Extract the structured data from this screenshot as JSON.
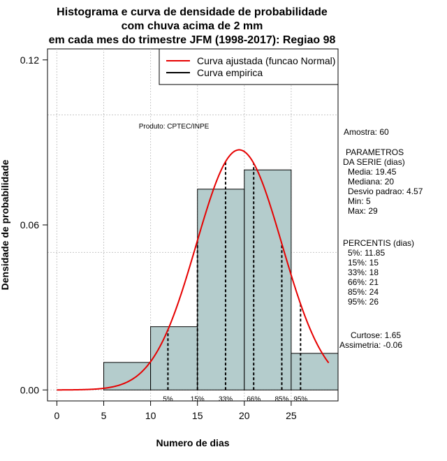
{
  "chart_data": {
    "type": "bar",
    "title_lines": [
      "Histograma e curva de densidade de probabilidade",
      "com chuva acima de 2 mm",
      "em cada mes do trimestre JFM (1998-2017): Regiao 98"
    ],
    "xlabel": "Numero de dias",
    "ylabel": "Densidade de probabilidade",
    "xlim": [
      -1,
      30
    ],
    "ylim": [
      -0.004,
      0.124
    ],
    "x_ticks": [
      0,
      5,
      10,
      15,
      20,
      25
    ],
    "y_ticks": [
      0.0,
      0.06,
      0.12
    ],
    "y_tick_labels": [
      "0.00",
      "0.06",
      "0.12"
    ],
    "bins": [
      {
        "from": 5,
        "to": 10,
        "density": 0.01
      },
      {
        "from": 10,
        "to": 15,
        "density": 0.023
      },
      {
        "from": 15,
        "to": 20,
        "density": 0.073
      },
      {
        "from": 20,
        "to": 25,
        "density": 0.08
      },
      {
        "from": 25,
        "to": 30,
        "density": 0.0133
      }
    ],
    "bar_color": "#b4cccc",
    "normal_fit": {
      "mean": 19.45,
      "sd": 4.57,
      "x_from": 0,
      "x_to": 29,
      "color": "#e60000"
    },
    "percentile_lines": [
      {
        "label": "5%",
        "x": 11.85
      },
      {
        "label": "15%",
        "x": 15
      },
      {
        "label": "33%",
        "x": 18
      },
      {
        "label": "66%",
        "x": 21
      },
      {
        "label": "85%",
        "x": 24
      },
      {
        "label": "95%",
        "x": 26
      }
    ],
    "grid": true,
    "legend": {
      "position": "top-right",
      "entries": [
        {
          "label": "Curva ajustada (funcao Normal)",
          "color": "#e60000"
        },
        {
          "label": "Curva empirica",
          "color": "#000000"
        }
      ]
    },
    "annotations": {
      "product": "Produto: CPTEC/INPE",
      "sample": "Amostra: 60",
      "params_title_1": "PARAMETROS",
      "params_title_2": "DA SERIE (dias)",
      "params": [
        "Media: 19.45",
        "Mediana: 20",
        "Desvio padrao: 4.57",
        "Min: 5",
        "Max: 29"
      ],
      "percentis_title": "PERCENTIS (dias)",
      "percentis": [
        "5%: 11.85",
        "15%: 15",
        "33%: 18",
        "66%: 21",
        "85%: 24",
        "95%: 26"
      ],
      "curtose": "Curtose: 1.65",
      "assimetria": "Assimetria: -0.06"
    }
  }
}
